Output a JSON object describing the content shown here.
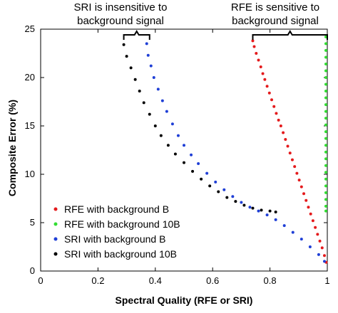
{
  "chart_data": {
    "type": "scatter",
    "xlabel": "Spectral Quality (RFE or SRI)",
    "ylabel": "Composite Error (%)",
    "xlim": [
      0.0,
      1.0
    ],
    "ylim": [
      0,
      25
    ],
    "xticks": [
      "0",
      "0.2",
      "0.4",
      "0.6",
      "0.8",
      "1"
    ],
    "xtick_values": [
      0,
      0.2,
      0.4,
      0.6,
      0.8,
      1.0
    ],
    "yticks": [
      "0",
      "5",
      "10",
      "15",
      "20",
      "25"
    ],
    "ytick_values": [
      0,
      5,
      10,
      15,
      20,
      25
    ],
    "grid": false,
    "legend_position": "bottom-left",
    "annotations": [
      {
        "lines": [
          "SRI is insensitive to",
          "background signal"
        ],
        "bracket_x": [
          0.29,
          0.38
        ]
      },
      {
        "lines": [
          "RFE is sensitive to",
          "background signal"
        ],
        "bracket_x": [
          0.74,
          1.0
        ]
      }
    ],
    "series": [
      {
        "name": "RFE with background B",
        "color": "#e41a1c",
        "points": [
          [
            0.74,
            23.8
          ],
          [
            0.745,
            23.2
          ],
          [
            0.752,
            22.5
          ],
          [
            0.76,
            21.8
          ],
          [
            0.768,
            21.1
          ],
          [
            0.775,
            20.4
          ],
          [
            0.782,
            19.8
          ],
          [
            0.79,
            19.1
          ],
          [
            0.798,
            18.4
          ],
          [
            0.806,
            17.7
          ],
          [
            0.814,
            17.0
          ],
          [
            0.822,
            16.3
          ],
          [
            0.83,
            15.6
          ],
          [
            0.838,
            15.0
          ],
          [
            0.846,
            14.3
          ],
          [
            0.854,
            13.6
          ],
          [
            0.862,
            12.9
          ],
          [
            0.87,
            12.2
          ],
          [
            0.878,
            11.5
          ],
          [
            0.886,
            10.8
          ],
          [
            0.894,
            10.1
          ],
          [
            0.902,
            9.4
          ],
          [
            0.91,
            8.7
          ],
          [
            0.918,
            8.0
          ],
          [
            0.926,
            7.3
          ],
          [
            0.934,
            6.6
          ],
          [
            0.942,
            5.9
          ],
          [
            0.95,
            5.2
          ],
          [
            0.958,
            4.5
          ],
          [
            0.966,
            3.8
          ],
          [
            0.974,
            3.1
          ],
          [
            0.982,
            2.4
          ],
          [
            0.99,
            1.6
          ],
          [
            0.996,
            0.9
          ]
        ]
      },
      {
        "name": "RFE with background 10B",
        "color": "#33dd33",
        "points": [
          [
            0.995,
            24.2
          ],
          [
            0.995,
            23.5
          ],
          [
            0.995,
            22.8
          ],
          [
            0.995,
            22.1
          ],
          [
            0.995,
            21.4
          ],
          [
            0.995,
            20.7
          ],
          [
            0.995,
            20.0
          ],
          [
            0.995,
            19.3
          ],
          [
            0.995,
            18.6
          ],
          [
            0.995,
            17.9
          ],
          [
            0.995,
            17.2
          ],
          [
            0.995,
            16.5
          ],
          [
            0.995,
            15.8
          ],
          [
            0.995,
            15.1
          ],
          [
            0.995,
            14.4
          ],
          [
            0.995,
            13.7
          ],
          [
            0.995,
            13.0
          ],
          [
            0.995,
            12.3
          ],
          [
            0.995,
            11.6
          ],
          [
            0.995,
            10.9
          ],
          [
            0.995,
            10.2
          ],
          [
            0.995,
            9.5
          ],
          [
            0.995,
            8.8
          ],
          [
            0.995,
            8.1
          ],
          [
            0.995,
            7.4
          ],
          [
            0.995,
            6.7
          ],
          [
            0.995,
            6.2
          ]
        ]
      },
      {
        "name": "SRI with background B",
        "color": "#1f3fd6",
        "points": [
          [
            0.37,
            23.5
          ],
          [
            0.375,
            22.3
          ],
          [
            0.385,
            21.2
          ],
          [
            0.395,
            20.0
          ],
          [
            0.41,
            18.8
          ],
          [
            0.425,
            17.6
          ],
          [
            0.44,
            16.5
          ],
          [
            0.46,
            15.2
          ],
          [
            0.48,
            14.0
          ],
          [
            0.5,
            13.0
          ],
          [
            0.525,
            12.0
          ],
          [
            0.55,
            11.1
          ],
          [
            0.58,
            10.1
          ],
          [
            0.61,
            9.2
          ],
          [
            0.64,
            8.4
          ],
          [
            0.67,
            7.7
          ],
          [
            0.7,
            7.1
          ],
          [
            0.73,
            6.6
          ],
          [
            0.76,
            6.2
          ],
          [
            0.79,
            5.8
          ],
          [
            0.82,
            5.3
          ],
          [
            0.85,
            4.7
          ],
          [
            0.88,
            4.0
          ],
          [
            0.91,
            3.3
          ],
          [
            0.94,
            2.5
          ],
          [
            0.97,
            1.7
          ],
          [
            0.99,
            1.0
          ]
        ]
      },
      {
        "name": "SRI with background 10B",
        "color": "#000000",
        "points": [
          [
            0.29,
            23.4
          ],
          [
            0.3,
            22.2
          ],
          [
            0.315,
            21.0
          ],
          [
            0.33,
            19.8
          ],
          [
            0.345,
            18.6
          ],
          [
            0.36,
            17.4
          ],
          [
            0.38,
            16.2
          ],
          [
            0.4,
            15.0
          ],
          [
            0.42,
            14.0
          ],
          [
            0.445,
            13.0
          ],
          [
            0.47,
            12.1
          ],
          [
            0.5,
            11.2
          ],
          [
            0.53,
            10.3
          ],
          [
            0.56,
            9.5
          ],
          [
            0.59,
            8.8
          ],
          [
            0.62,
            8.2
          ],
          [
            0.65,
            7.6
          ],
          [
            0.68,
            7.2
          ],
          [
            0.71,
            6.8
          ],
          [
            0.74,
            6.5
          ],
          [
            0.77,
            6.3
          ],
          [
            0.8,
            6.2
          ],
          [
            0.82,
            6.1
          ]
        ]
      }
    ]
  }
}
